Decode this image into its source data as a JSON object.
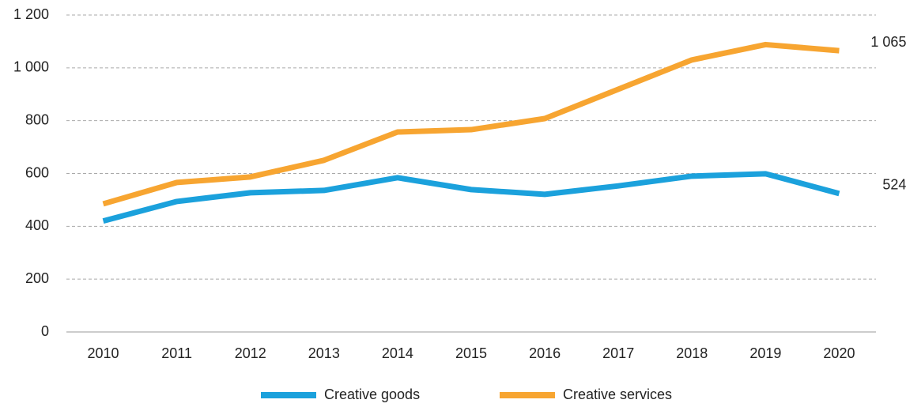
{
  "chart_data": {
    "type": "line",
    "categories": [
      "2010",
      "2011",
      "2012",
      "2013",
      "2014",
      "2015",
      "2016",
      "2017",
      "2018",
      "2019",
      "2020"
    ],
    "series": [
      {
        "name": "Creative goods",
        "color": "#1ba1dc",
        "values": [
          420,
          494,
          527,
          536,
          584,
          539,
          521,
          553,
          590,
          599,
          524
        ]
      },
      {
        "name": "Creative services",
        "color": "#f7a531",
        "values": [
          485,
          566,
          587,
          650,
          757,
          766,
          808,
          919,
          1030,
          1088,
          1065
        ],
        "value_labels": [
          null,
          null,
          null,
          null,
          null,
          null,
          null,
          null,
          null,
          null,
          "1 065"
        ]
      }
    ],
    "ylim": [
      0,
      1200
    ],
    "yticks": [
      0,
      200,
      400,
      600,
      800,
      {
        "value": 1000,
        "label": "1 000"
      },
      {
        "value": 1200,
        "label": "1 200"
      }
    ],
    "grid": true,
    "legend": "bottom"
  }
}
